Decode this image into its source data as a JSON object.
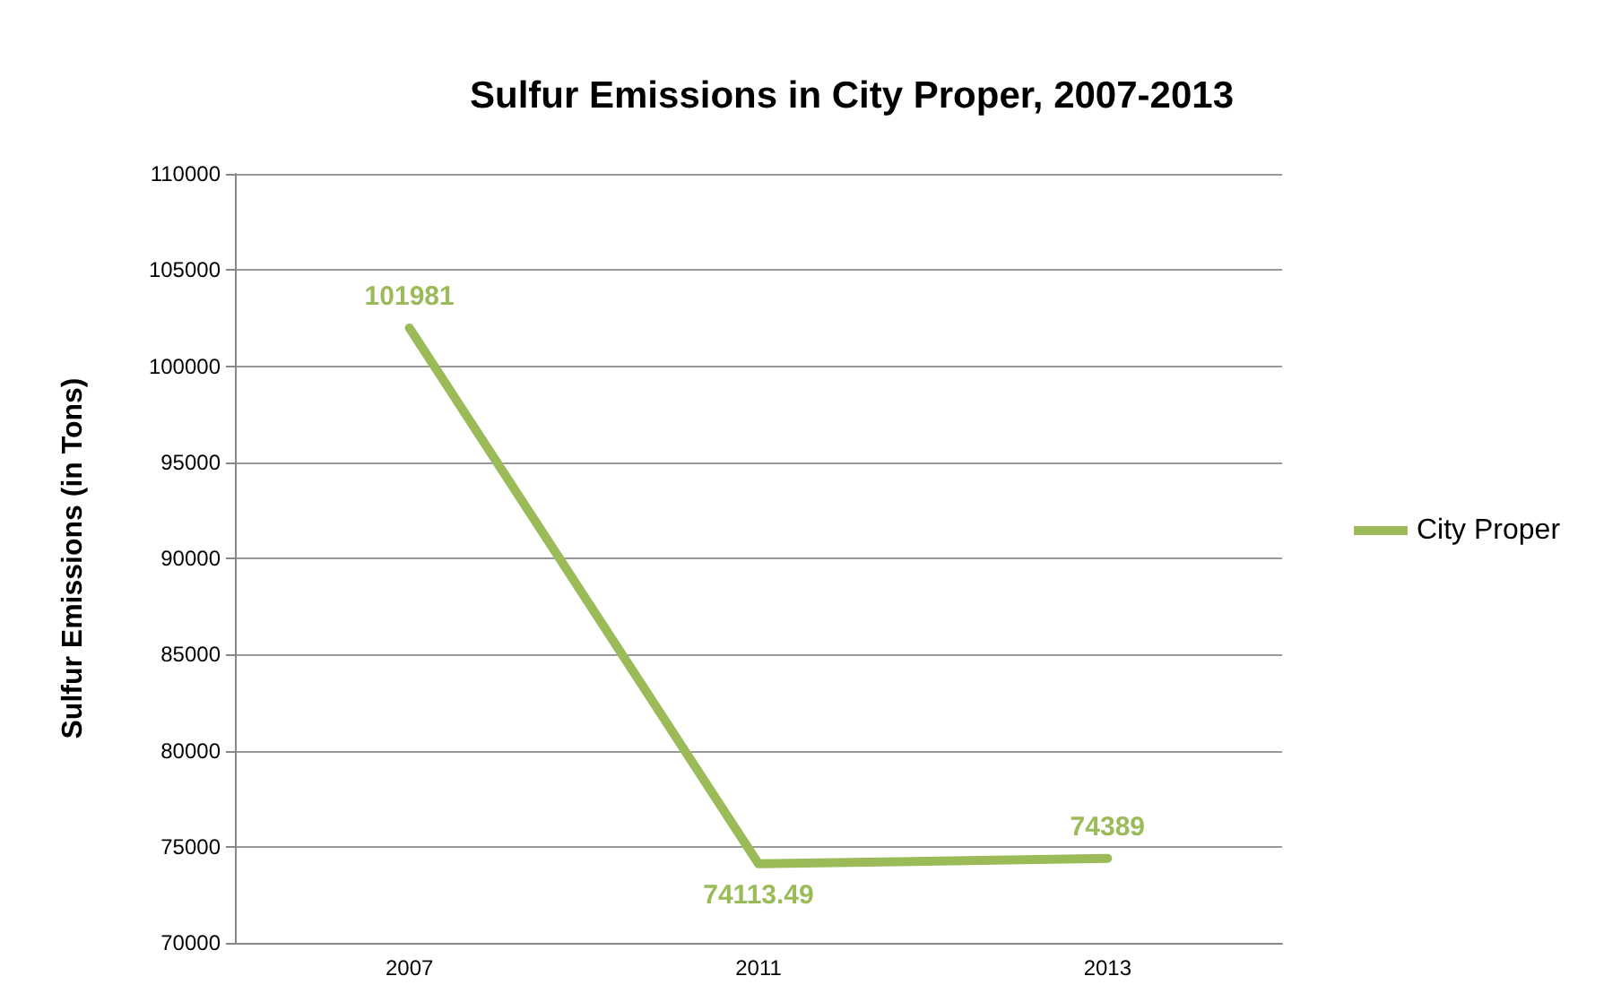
{
  "chart_data": {
    "type": "line",
    "title": "Sulfur Emissions in City Proper, 2007-2013",
    "ylabel": "Sulfur Emissions (in Tons)",
    "categories": [
      "2007",
      "2011",
      "2013"
    ],
    "series": [
      {
        "name": "City Proper",
        "color": "#9bbb59",
        "values": [
          101981,
          74113.49,
          74389
        ]
      }
    ],
    "ylim": [
      70000,
      110000
    ],
    "yticks": [
      70000,
      75000,
      80000,
      85000,
      90000,
      95000,
      100000,
      105000,
      110000
    ],
    "grid": "y",
    "legend": "right",
    "data_labels": true,
    "marker": "none",
    "line_style": "solid"
  }
}
